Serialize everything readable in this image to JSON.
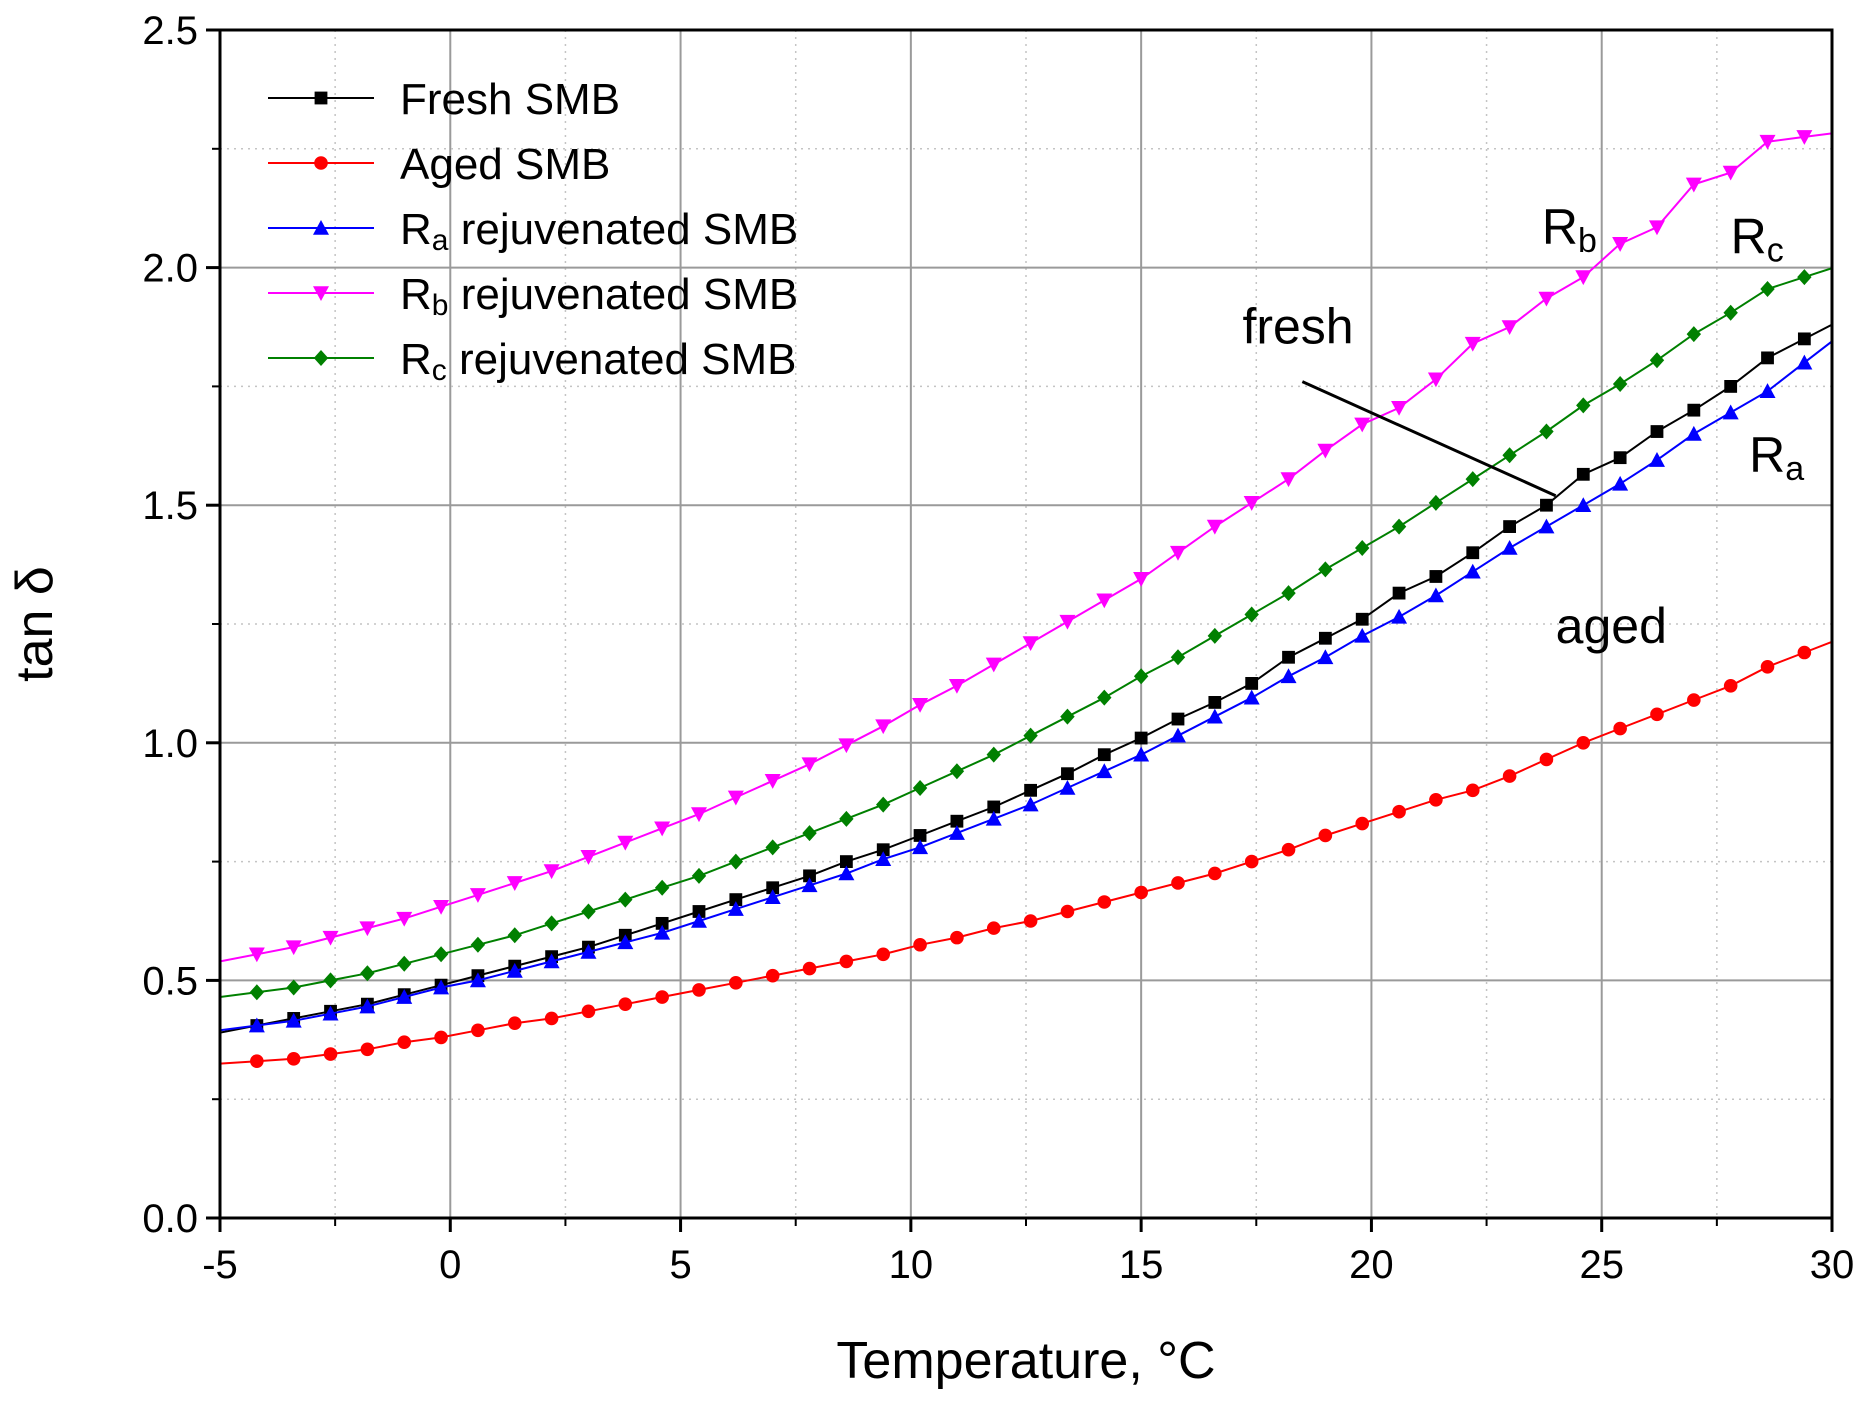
{
  "chart_data": {
    "type": "line",
    "title": "",
    "xlabel": "Temperature, °C",
    "ylabel": "tan δ",
    "xlim": [
      -5,
      30
    ],
    "ylim": [
      0.0,
      2.5
    ],
    "xticks": [
      -5,
      0,
      5,
      10,
      15,
      20,
      25,
      30
    ],
    "xtick_labels": [
      "-5",
      "0",
      "5",
      "10",
      "15",
      "20",
      "25",
      "30"
    ],
    "yticks": [
      0.0,
      0.5,
      1.0,
      1.5,
      2.0,
      2.5
    ],
    "ytick_labels": [
      "0.0",
      "0.5",
      "1.0",
      "1.5",
      "2.0",
      "2.5"
    ],
    "grid": true,
    "legend_position": "top-left",
    "x": [
      -4.2,
      -3.4,
      -2.6,
      -1.8,
      -1.0,
      -0.2,
      0.6,
      1.4,
      2.2,
      3.0,
      3.8,
      4.6,
      5.4,
      6.2,
      7.0,
      7.8,
      8.6,
      9.4,
      10.2,
      11.0,
      11.8,
      12.6,
      13.4,
      14.2,
      15.0,
      15.8,
      16.6,
      17.4,
      18.2,
      19.0,
      19.8,
      20.6,
      21.4,
      22.2,
      23.0,
      23.8,
      24.6,
      25.4,
      26.2,
      27.0,
      27.8,
      28.6,
      29.4
    ],
    "series": [
      {
        "name": "Fresh SMB",
        "label_main": "Fresh SMB",
        "label_sub": "",
        "label_rest": "",
        "color": "#000000",
        "marker": "square",
        "values": [
          0.405,
          0.42,
          0.435,
          0.45,
          0.47,
          0.49,
          0.51,
          0.53,
          0.55,
          0.57,
          0.595,
          0.62,
          0.645,
          0.67,
          0.695,
          0.72,
          0.75,
          0.775,
          0.805,
          0.835,
          0.865,
          0.9,
          0.935,
          0.975,
          1.01,
          1.05,
          1.085,
          1.125,
          1.18,
          1.22,
          1.26,
          1.315,
          1.35,
          1.4,
          1.455,
          1.5,
          1.565,
          1.6,
          1.655,
          1.7,
          1.75,
          1.81,
          1.85
        ]
      },
      {
        "name": "Aged SMB",
        "label_main": "Aged SMB",
        "label_sub": "",
        "label_rest": "",
        "color": "#ff0000",
        "marker": "circle",
        "values": [
          0.33,
          0.335,
          0.345,
          0.355,
          0.37,
          0.38,
          0.395,
          0.41,
          0.42,
          0.435,
          0.45,
          0.465,
          0.48,
          0.495,
          0.51,
          0.525,
          0.54,
          0.555,
          0.575,
          0.59,
          0.61,
          0.625,
          0.645,
          0.665,
          0.685,
          0.705,
          0.725,
          0.75,
          0.775,
          0.805,
          0.83,
          0.855,
          0.88,
          0.9,
          0.93,
          0.965,
          1.0,
          1.03,
          1.06,
          1.09,
          1.12,
          1.16,
          1.19
        ]
      },
      {
        "name": "Ra rejuvenated SMB",
        "label_main": "R",
        "label_sub": "a",
        "label_rest": " rejuvenated SMB",
        "color": "#0000ff",
        "marker": "triangle-up",
        "values": [
          0.405,
          0.415,
          0.43,
          0.445,
          0.465,
          0.485,
          0.5,
          0.52,
          0.54,
          0.56,
          0.58,
          0.6,
          0.625,
          0.65,
          0.675,
          0.7,
          0.725,
          0.755,
          0.78,
          0.81,
          0.84,
          0.87,
          0.905,
          0.94,
          0.975,
          1.015,
          1.055,
          1.095,
          1.14,
          1.18,
          1.225,
          1.265,
          1.31,
          1.36,
          1.41,
          1.455,
          1.5,
          1.545,
          1.595,
          1.65,
          1.695,
          1.74,
          1.8
        ]
      },
      {
        "name": "Rb rejuvenated SMB",
        "label_main": "R",
        "label_sub": "b",
        "label_rest": " rejuvenated SMB",
        "color": "#ff00ff",
        "marker": "triangle-down",
        "values": [
          0.555,
          0.57,
          0.59,
          0.61,
          0.63,
          0.655,
          0.68,
          0.705,
          0.73,
          0.76,
          0.79,
          0.82,
          0.85,
          0.885,
          0.92,
          0.955,
          0.995,
          1.035,
          1.08,
          1.12,
          1.165,
          1.21,
          1.255,
          1.3,
          1.345,
          1.4,
          1.455,
          1.505,
          1.555,
          1.615,
          1.67,
          1.705,
          1.765,
          1.84,
          1.875,
          1.935,
          1.98,
          2.05,
          2.085,
          2.175,
          2.2,
          2.265,
          2.275
        ]
      },
      {
        "name": "Rc rejuvenated SMB",
        "label_main": "R",
        "label_sub": "c",
        "label_rest": " rejuvenated SMB",
        "color": "#008000",
        "marker": "diamond",
        "values": [
          0.475,
          0.485,
          0.5,
          0.515,
          0.535,
          0.555,
          0.575,
          0.595,
          0.62,
          0.645,
          0.67,
          0.695,
          0.72,
          0.75,
          0.78,
          0.81,
          0.84,
          0.87,
          0.905,
          0.94,
          0.975,
          1.015,
          1.055,
          1.095,
          1.14,
          1.18,
          1.225,
          1.27,
          1.315,
          1.365,
          1.41,
          1.455,
          1.505,
          1.555,
          1.605,
          1.655,
          1.71,
          1.755,
          1.805,
          1.86,
          1.905,
          1.955,
          1.98
        ]
      }
    ],
    "annotations": [
      {
        "key": "fresh",
        "text": "fresh",
        "sub": "",
        "x": 17.2,
        "y": 1.84,
        "pointer": [
          [
            18.5,
            1.76
          ],
          [
            24.0,
            1.52
          ]
        ]
      },
      {
        "key": "aged",
        "text": "aged",
        "sub": "",
        "x": 24.0,
        "y": 1.21,
        "pointer": null
      },
      {
        "key": "Rb",
        "text": "R",
        "sub": "b",
        "x": 23.7,
        "y": 2.05,
        "pointer": null
      },
      {
        "key": "Rc",
        "text": "R",
        "sub": "c",
        "x": 27.8,
        "y": 2.03,
        "pointer": null
      },
      {
        "key": "Ra",
        "text": "R",
        "sub": "a",
        "x": 28.2,
        "y": 1.57,
        "pointer": null
      }
    ]
  }
}
